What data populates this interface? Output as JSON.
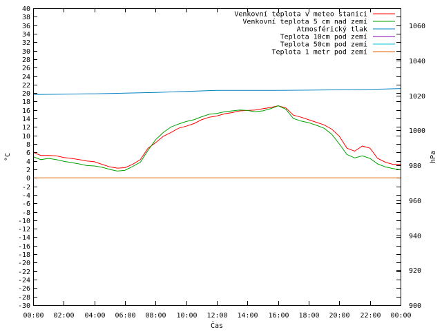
{
  "chart_data": {
    "type": "line",
    "xlabel": "Čas",
    "ylabel": "°C",
    "y2label": "hPa",
    "ylim": [
      -30,
      40
    ],
    "y2lim": [
      900,
      1070
    ],
    "y_ticks": [
      40,
      38,
      36,
      34,
      32,
      30,
      28,
      26,
      24,
      22,
      20,
      18,
      16,
      14,
      12,
      10,
      8,
      6,
      4,
      2,
      0,
      -2,
      -4,
      -6,
      -8,
      -10,
      -12,
      -14,
      -16,
      -18,
      -20,
      -22,
      -24,
      -26,
      -28,
      -30
    ],
    "y2_ticks": [
      1060,
      1040,
      1020,
      1000,
      980,
      960,
      940,
      920,
      900
    ],
    "x_ticks": [
      "00:00",
      "02:00",
      "04:00",
      "06:00",
      "08:00",
      "10:00",
      "12:00",
      "14:00",
      "16:00",
      "18:00",
      "20:00",
      "22:00",
      "00:00"
    ],
    "legend_position": "top-right",
    "series": [
      {
        "name": "Venkovní teplota v meteo stanici",
        "axis": "left",
        "color": "#ff0000",
        "x": [
          0,
          0.5,
          1,
          1.5,
          2,
          2.5,
          3,
          3.5,
          4,
          4.5,
          5,
          5.5,
          6,
          6.5,
          7,
          7.5,
          8,
          8.5,
          9,
          9.5,
          10,
          10.5,
          11,
          11.5,
          12,
          12.5,
          13,
          13.5,
          14,
          14.5,
          15,
          15.5,
          16,
          16.5,
          17,
          17.5,
          18,
          18.5,
          19,
          19.5,
          20,
          20.5,
          21,
          21.5,
          22,
          22.5,
          23,
          23.5,
          24
        ],
        "values": [
          6.0,
          5.3,
          5.3,
          5.2,
          4.8,
          4.6,
          4.3,
          4.0,
          3.8,
          3.2,
          2.6,
          2.3,
          2.4,
          3.2,
          4.3,
          7.0,
          8.3,
          9.8,
          10.7,
          11.7,
          12.2,
          12.8,
          13.7,
          14.3,
          14.6,
          15.1,
          15.4,
          15.8,
          15.9,
          16.0,
          16.3,
          16.6,
          17.0,
          16.5,
          14.8,
          14.3,
          13.7,
          13.1,
          12.5,
          11.5,
          9.8,
          7.0,
          6.3,
          7.5,
          7.0,
          4.6,
          3.7,
          3.2,
          3.2
        ]
      },
      {
        "name": "Venkovní teplota 5 cm nad zemí",
        "axis": "left",
        "color": "#00a000",
        "x": [
          0,
          0.5,
          1,
          1.5,
          2,
          2.5,
          3,
          3.5,
          4,
          4.5,
          5,
          5.5,
          6,
          6.5,
          7,
          7.5,
          8,
          8.5,
          9,
          9.5,
          10,
          10.5,
          11,
          11.5,
          12,
          12.5,
          13,
          13.5,
          14,
          14.5,
          15,
          15.5,
          16,
          16.5,
          17,
          17.5,
          18,
          18.5,
          19,
          19.5,
          20,
          20.5,
          21,
          21.5,
          22,
          22.5,
          23,
          23.5,
          24
        ],
        "values": [
          5.0,
          4.3,
          4.6,
          4.3,
          3.9,
          3.6,
          3.3,
          2.9,
          2.8,
          2.5,
          2.0,
          1.6,
          1.8,
          2.7,
          3.7,
          6.5,
          9.0,
          10.7,
          12.0,
          12.7,
          13.3,
          13.7,
          14.4,
          15.0,
          15.2,
          15.6,
          15.8,
          16.0,
          15.9,
          15.6,
          15.8,
          16.3,
          17.0,
          16.2,
          14.0,
          13.4,
          13.0,
          12.4,
          11.7,
          10.3,
          8.0,
          5.5,
          4.7,
          5.2,
          4.6,
          3.3,
          2.6,
          2.2,
          1.9
        ]
      },
      {
        "name": "Atmosférický tlak",
        "axis": "right",
        "color": "#0080c0",
        "x": [
          0,
          2,
          4,
          6,
          8,
          10,
          12,
          14,
          16,
          18,
          20,
          22,
          24
        ],
        "values": [
          1020.6,
          1020.8,
          1021.0,
          1021.4,
          1021.8,
          1022.4,
          1023.0,
          1023.0,
          1023.0,
          1023.1,
          1023.3,
          1023.5,
          1024.0
        ]
      },
      {
        "name": "Teplota 10cm pod zemí",
        "axis": "left",
        "color": "#8000b0",
        "x": [],
        "values": []
      },
      {
        "name": "Teplota 50cm pod zemí",
        "axis": "left",
        "color": "#00c0e0",
        "x": [],
        "values": []
      },
      {
        "name": "Teplota 1 metr pod zemí",
        "axis": "left",
        "color": "#e06000",
        "x": [
          0,
          24
        ],
        "values": [
          0,
          0
        ]
      }
    ]
  }
}
